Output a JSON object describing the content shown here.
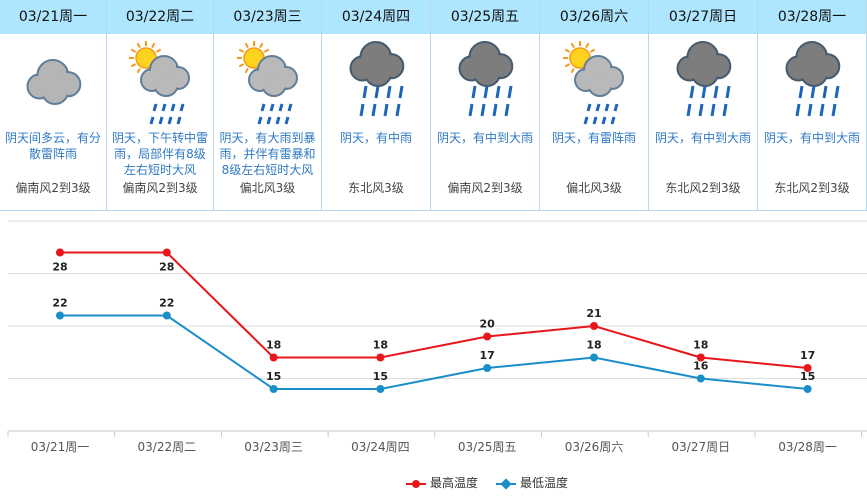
{
  "days": [
    {
      "date": "03/21周一",
      "icon": "cloudy-icon",
      "desc": "阴天间多云，有分散雷阵雨",
      "wind": "偏南风2到3级"
    },
    {
      "date": "03/22周二",
      "icon": "sun-cloud-rain-icon",
      "desc": "阴天，下午转中雷雨，局部伴有8级左右短时大风",
      "wind": "偏南风2到3级"
    },
    {
      "date": "03/23周三",
      "icon": "sun-cloud-rain-icon",
      "desc": "阴天，有大雨到暴雨，并伴有雷暴和8级左右短时大风",
      "wind": "偏北风3级"
    },
    {
      "date": "03/24周四",
      "icon": "dark-cloud-rain-icon",
      "desc": "阴天，有中雨",
      "wind": "东北风3级"
    },
    {
      "date": "03/25周五",
      "icon": "dark-cloud-rain-icon",
      "desc": "阴天，有中到大雨",
      "wind": "偏南风2到3级"
    },
    {
      "date": "03/26周六",
      "icon": "sun-cloud-rain-icon",
      "desc": "阴天，有雷阵雨",
      "wind": "偏北风3级"
    },
    {
      "date": "03/27周日",
      "icon": "dark-cloud-rain-icon",
      "desc": "阴天，有中到大雨",
      "wind": "东北风2到3级"
    },
    {
      "date": "03/28周一",
      "icon": "dark-cloud-rain-icon",
      "desc": "阴天，有中到大雨",
      "wind": "东北风2到3级"
    }
  ],
  "chart_data": {
    "type": "line",
    "categories": [
      "03/21周一",
      "03/22周二",
      "03/23周三",
      "03/24周四",
      "03/25周五",
      "03/26周六",
      "03/27周日",
      "03/28周一"
    ],
    "series": [
      {
        "name": "最高温度",
        "color": "#e8161a",
        "values": [
          28,
          28,
          18,
          18,
          20,
          21,
          18,
          17
        ]
      },
      {
        "name": "最低温度",
        "color": "#1a8ec8",
        "values": [
          22,
          22,
          15,
          15,
          17,
          18,
          16,
          15
        ]
      }
    ],
    "ylim": [
      11,
      31
    ],
    "grid": true,
    "legend": "bottom-center"
  },
  "legend": {
    "high": "最高温度",
    "low": "最低温度"
  }
}
